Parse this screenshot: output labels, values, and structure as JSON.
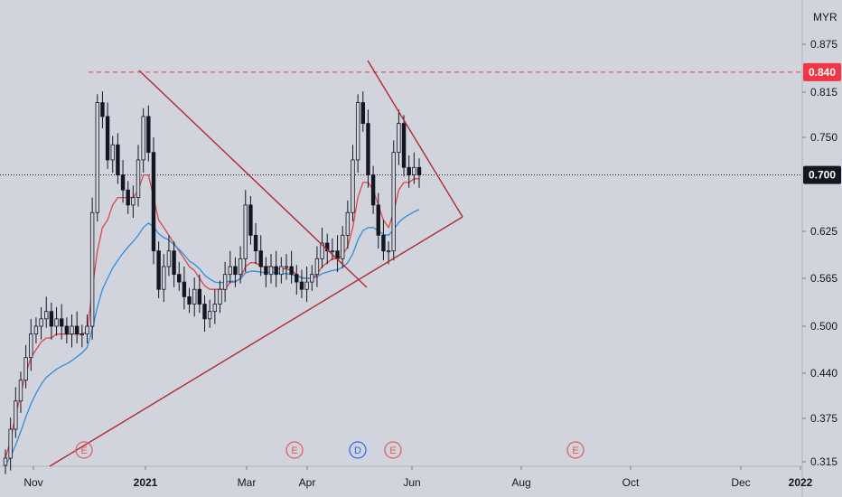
{
  "chart_data": {
    "type": "candlestick",
    "currency": "MYR",
    "x_labels": [
      "Nov",
      "2021",
      "Mar",
      "Apr",
      "Jun",
      "Aug",
      "Oct",
      "Dec",
      "2022"
    ],
    "y_ticks": [
      "0.875",
      "0.815",
      "0.750",
      "0.625",
      "0.565",
      "0.500",
      "0.440",
      "0.375",
      "0.315"
    ],
    "ylim": [
      0.31,
      0.9
    ],
    "price_levels": [
      {
        "label": "0.840",
        "value": 0.84,
        "style": "dashed",
        "color": "#f23645"
      },
      {
        "label": "0.700",
        "value": 0.7,
        "style": "dotted",
        "color": "#131722"
      }
    ],
    "events": [
      {
        "letter": "E",
        "color": "#e05a5a",
        "date": "Dec 2020"
      },
      {
        "letter": "E",
        "color": "#e05a5a",
        "date": "Mar 2021"
      },
      {
        "letter": "D",
        "color": "#2962ff",
        "date": "Apr 2021"
      },
      {
        "letter": "E",
        "color": "#e05a5a",
        "date": "May 2021"
      },
      {
        "letter": "E",
        "color": "#e05a5a",
        "date": "Aug 2021"
      }
    ],
    "series": [
      {
        "type": "candles",
        "color": "#131722",
        "values": [
          0.32,
          0.36,
          0.4,
          0.43,
          0.46,
          0.49,
          0.5,
          0.51,
          0.52,
          0.5,
          0.51,
          0.5,
          0.49,
          0.5,
          0.49,
          0.49,
          0.5,
          0.65,
          0.8,
          0.78,
          0.72,
          0.74,
          0.7,
          0.68,
          0.66,
          0.67,
          0.72,
          0.78,
          0.73,
          0.6,
          0.55,
          0.58,
          0.6,
          0.57,
          0.56,
          0.54,
          0.53,
          0.55,
          0.53,
          0.51,
          0.52,
          0.53,
          0.55,
          0.57,
          0.58,
          0.57,
          0.59,
          0.66,
          0.62,
          0.6,
          0.58,
          0.57,
          0.58,
          0.57,
          0.58,
          0.58,
          0.57,
          0.56,
          0.55,
          0.56,
          0.57,
          0.59,
          0.61,
          0.6,
          0.6,
          0.59,
          0.62,
          0.65,
          0.72,
          0.8,
          0.77,
          0.7,
          0.66,
          0.62,
          0.6,
          0.6,
          0.73,
          0.77,
          0.71,
          0.7,
          0.71,
          0.7
        ]
      },
      {
        "type": "line",
        "color": "#e0434b",
        "values": [
          0.32,
          0.345,
          0.38,
          0.41,
          0.44,
          0.46,
          0.47,
          0.48,
          0.485,
          0.485,
          0.49,
          0.49,
          0.49,
          0.49,
          0.49,
          0.49,
          0.493,
          0.55,
          0.6,
          0.63,
          0.64,
          0.66,
          0.67,
          0.67,
          0.67,
          0.67,
          0.68,
          0.7,
          0.7,
          0.67,
          0.64,
          0.63,
          0.62,
          0.61,
          0.6,
          0.59,
          0.58,
          0.575,
          0.565,
          0.555,
          0.55,
          0.55,
          0.55,
          0.55,
          0.56,
          0.56,
          0.565,
          0.58,
          0.585,
          0.585,
          0.58,
          0.58,
          0.58,
          0.577,
          0.577,
          0.577,
          0.575,
          0.57,
          0.565,
          0.565,
          0.565,
          0.57,
          0.58,
          0.585,
          0.59,
          0.59,
          0.595,
          0.605,
          0.63,
          0.67,
          0.69,
          0.69,
          0.68,
          0.66,
          0.64,
          0.63,
          0.65,
          0.68,
          0.69,
          0.69,
          0.695,
          0.695
        ]
      },
      {
        "type": "line",
        "color": "#2f8ddf",
        "values": [
          0.31,
          0.322,
          0.338,
          0.357,
          0.377,
          0.396,
          0.411,
          0.424,
          0.434,
          0.44,
          0.445,
          0.449,
          0.452,
          0.456,
          0.461,
          0.466,
          0.473,
          0.496,
          0.526,
          0.55,
          0.565,
          0.578,
          0.588,
          0.597,
          0.605,
          0.612,
          0.62,
          0.63,
          0.636,
          0.631,
          0.622,
          0.617,
          0.614,
          0.608,
          0.602,
          0.595,
          0.587,
          0.583,
          0.577,
          0.569,
          0.564,
          0.56,
          0.559,
          0.56,
          0.561,
          0.561,
          0.564,
          0.572,
          0.574,
          0.574,
          0.573,
          0.572,
          0.573,
          0.572,
          0.571,
          0.571,
          0.57,
          0.568,
          0.566,
          0.565,
          0.565,
          0.567,
          0.571,
          0.573,
          0.575,
          0.576,
          0.579,
          0.585,
          0.596,
          0.614,
          0.626,
          0.63,
          0.63,
          0.626,
          0.621,
          0.62,
          0.627,
          0.637,
          0.643,
          0.647,
          0.651,
          0.654
        ]
      }
    ]
  }
}
